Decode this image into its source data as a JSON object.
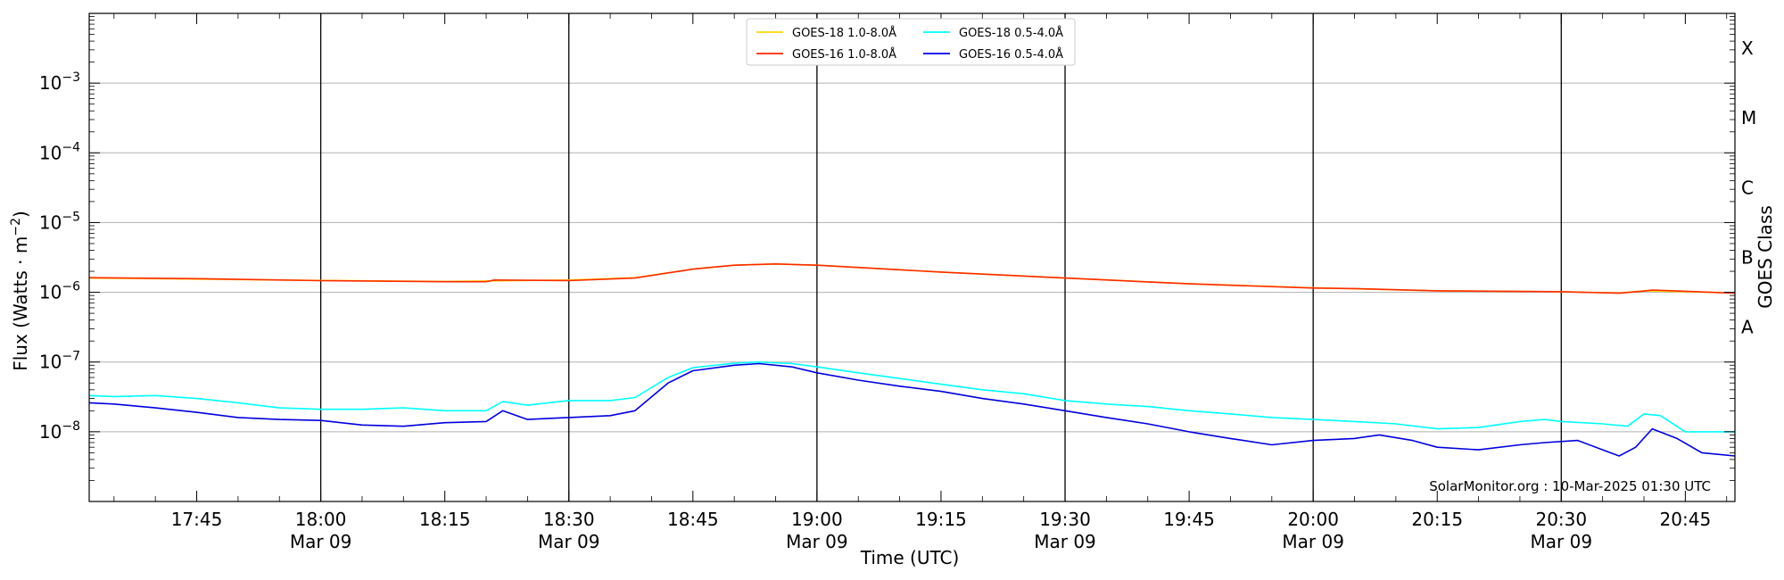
{
  "chart_data": {
    "type": "line",
    "title": "",
    "xlabel": "Time (UTC)",
    "ylabel_prefix": "Flux (Watts · m",
    "ylabel_sup": "−2",
    "ylabel_suffix": ")",
    "right_label": "GOES Class",
    "credit": "SolarMonitor.org : 10-Mar-2025 01:30 UTC",
    "y_scale": "log",
    "ylim": [
      1e-09,
      0.01
    ],
    "xlim": [
      "17:32",
      "20:51"
    ],
    "grid": "horizontal at decades; vertical lines every 30 min",
    "legend_position": "top-center",
    "y_ticks": [
      {
        "value": 1e-08,
        "base": "10",
        "exp": "−8"
      },
      {
        "value": 1e-07,
        "base": "10",
        "exp": "−7"
      },
      {
        "value": 1e-06,
        "base": "10",
        "exp": "−6"
      },
      {
        "value": 1e-05,
        "base": "10",
        "exp": "−5"
      },
      {
        "value": 0.0001,
        "base": "10",
        "exp": "−4"
      },
      {
        "value": 0.001,
        "base": "10",
        "exp": "−3"
      }
    ],
    "class_labels": [
      {
        "label": "A",
        "value": 1e-07
      },
      {
        "label": "B",
        "value": 1e-06
      },
      {
        "label": "C",
        "value": 1e-05
      },
      {
        "label": "M",
        "value": 0.0001
      },
      {
        "label": "X",
        "value": 0.001
      }
    ],
    "x_ticks": [
      {
        "time": "17:45",
        "date": ""
      },
      {
        "time": "18:00",
        "date": "Mar 09"
      },
      {
        "time": "18:15",
        "date": ""
      },
      {
        "time": "18:30",
        "date": "Mar 09"
      },
      {
        "time": "18:45",
        "date": ""
      },
      {
        "time": "19:00",
        "date": "Mar 09"
      },
      {
        "time": "19:15",
        "date": ""
      },
      {
        "time": "19:30",
        "date": "Mar 09"
      },
      {
        "time": "19:45",
        "date": ""
      },
      {
        "time": "20:00",
        "date": "Mar 09"
      },
      {
        "time": "20:15",
        "date": ""
      },
      {
        "time": "20:30",
        "date": "Mar 09"
      },
      {
        "time": "20:45",
        "date": ""
      }
    ],
    "series": [
      {
        "name": "GOES-18 1.0-8.0Å",
        "color": "#ffd700",
        "x": [
          "17:32",
          "18:00",
          "18:15",
          "18:30",
          "18:38",
          "18:45",
          "18:50",
          "18:55",
          "19:00",
          "19:15",
          "19:30",
          "19:45",
          "20:00",
          "20:15",
          "20:30",
          "20:37",
          "20:40",
          "20:51"
        ],
        "y": [
          1.6e-06,
          1.48e-06,
          1.43e-06,
          1.5e-06,
          1.62e-06,
          2.15e-06,
          2.45e-06,
          2.55e-06,
          2.45e-06,
          1.95e-06,
          1.6e-06,
          1.33e-06,
          1.16e-06,
          1.05e-06,
          1.02e-06,
          9.8e-07,
          1.05e-06,
          9.8e-07
        ]
      },
      {
        "name": "GOES-16 1.0-8.0Å",
        "color": "#ff2a00",
        "x": [
          "17:32",
          "17:45",
          "18:00",
          "18:15",
          "18:20",
          "18:21",
          "18:30",
          "18:38",
          "18:45",
          "18:50",
          "18:55",
          "19:00",
          "19:15",
          "19:30",
          "19:45",
          "20:00",
          "20:05",
          "20:15",
          "20:30",
          "20:37",
          "20:40",
          "20:41",
          "20:51"
        ],
        "y": [
          1.62e-06,
          1.57e-06,
          1.47e-06,
          1.42e-06,
          1.42e-06,
          1.5e-06,
          1.47e-06,
          1.6e-06,
          2.15e-06,
          2.45e-06,
          2.55e-06,
          2.45e-06,
          1.95e-06,
          1.6e-06,
          1.32e-06,
          1.15e-06,
          1.13e-06,
          1.05e-06,
          1.02e-06,
          9.7e-07,
          1.04e-06,
          1.08e-06,
          9.7e-07
        ]
      },
      {
        "name": "GOES-18 0.5-4.0Å",
        "color": "#00ffff",
        "x": [
          "17:32",
          "17:35",
          "17:40",
          "17:45",
          "17:50",
          "17:55",
          "18:00",
          "18:05",
          "18:10",
          "18:15",
          "18:20",
          "18:22",
          "18:25",
          "18:30",
          "18:35",
          "18:38",
          "18:42",
          "18:45",
          "18:50",
          "18:53",
          "18:57",
          "19:00",
          "19:05",
          "19:10",
          "19:15",
          "19:20",
          "19:25",
          "19:30",
          "19:35",
          "19:40",
          "19:45",
          "19:50",
          "19:55",
          "20:00",
          "20:05",
          "20:10",
          "20:15",
          "20:20",
          "20:25",
          "20:28",
          "20:30",
          "20:35",
          "20:38",
          "20:40",
          "20:42",
          "20:45",
          "20:51"
        ],
        "y": [
          3.3e-08,
          3.2e-08,
          3.3e-08,
          3e-08,
          2.6e-08,
          2.2e-08,
          2.1e-08,
          2.1e-08,
          2.2e-08,
          2e-08,
          2e-08,
          2.7e-08,
          2.4e-08,
          2.8e-08,
          2.8e-08,
          3.1e-08,
          6e-08,
          8.3e-08,
          9.6e-08,
          1e-07,
          9.5e-08,
          8.5e-08,
          7e-08,
          5.8e-08,
          4.8e-08,
          4e-08,
          3.5e-08,
          2.8e-08,
          2.5e-08,
          2.3e-08,
          2e-08,
          1.8e-08,
          1.6e-08,
          1.5e-08,
          1.4e-08,
          1.3e-08,
          1.1e-08,
          1.15e-08,
          1.4e-08,
          1.5e-08,
          1.4e-08,
          1.3e-08,
          1.2e-08,
          1.8e-08,
          1.7e-08,
          1e-08,
          1e-08
        ]
      },
      {
        "name": "GOES-16 0.5-4.0Å",
        "color": "#0000dd",
        "x": [
          "17:32",
          "17:35",
          "17:40",
          "17:45",
          "17:50",
          "17:55",
          "18:00",
          "18:05",
          "18:10",
          "18:15",
          "18:20",
          "18:22",
          "18:25",
          "18:30",
          "18:35",
          "18:38",
          "18:42",
          "18:45",
          "18:50",
          "18:53",
          "18:57",
          "19:00",
          "19:05",
          "19:10",
          "19:15",
          "19:20",
          "19:25",
          "19:30",
          "19:35",
          "19:40",
          "19:45",
          "19:50",
          "19:55",
          "20:00",
          "20:05",
          "20:08",
          "20:12",
          "20:15",
          "20:20",
          "20:25",
          "20:28",
          "20:32",
          "20:35",
          "20:37",
          "20:39",
          "20:41",
          "20:44",
          "20:47",
          "20:51"
        ],
        "y": [
          2.6e-08,
          2.5e-08,
          2.2e-08,
          1.9e-08,
          1.6e-08,
          1.5e-08,
          1.45e-08,
          1.25e-08,
          1.2e-08,
          1.35e-08,
          1.4e-08,
          2e-08,
          1.5e-08,
          1.6e-08,
          1.7e-08,
          2e-08,
          5e-08,
          7.5e-08,
          9e-08,
          9.5e-08,
          8.5e-08,
          7e-08,
          5.5e-08,
          4.5e-08,
          3.8e-08,
          3e-08,
          2.5e-08,
          2e-08,
          1.6e-08,
          1.3e-08,
          1e-08,
          8e-09,
          6.5e-09,
          7.5e-09,
          8e-09,
          9e-09,
          7.5e-09,
          6e-09,
          5.5e-09,
          6.5e-09,
          7e-09,
          7.5e-09,
          5.5e-09,
          4.5e-09,
          6e-09,
          1.1e-08,
          8e-09,
          5e-09,
          4.5e-09
        ]
      }
    ]
  }
}
